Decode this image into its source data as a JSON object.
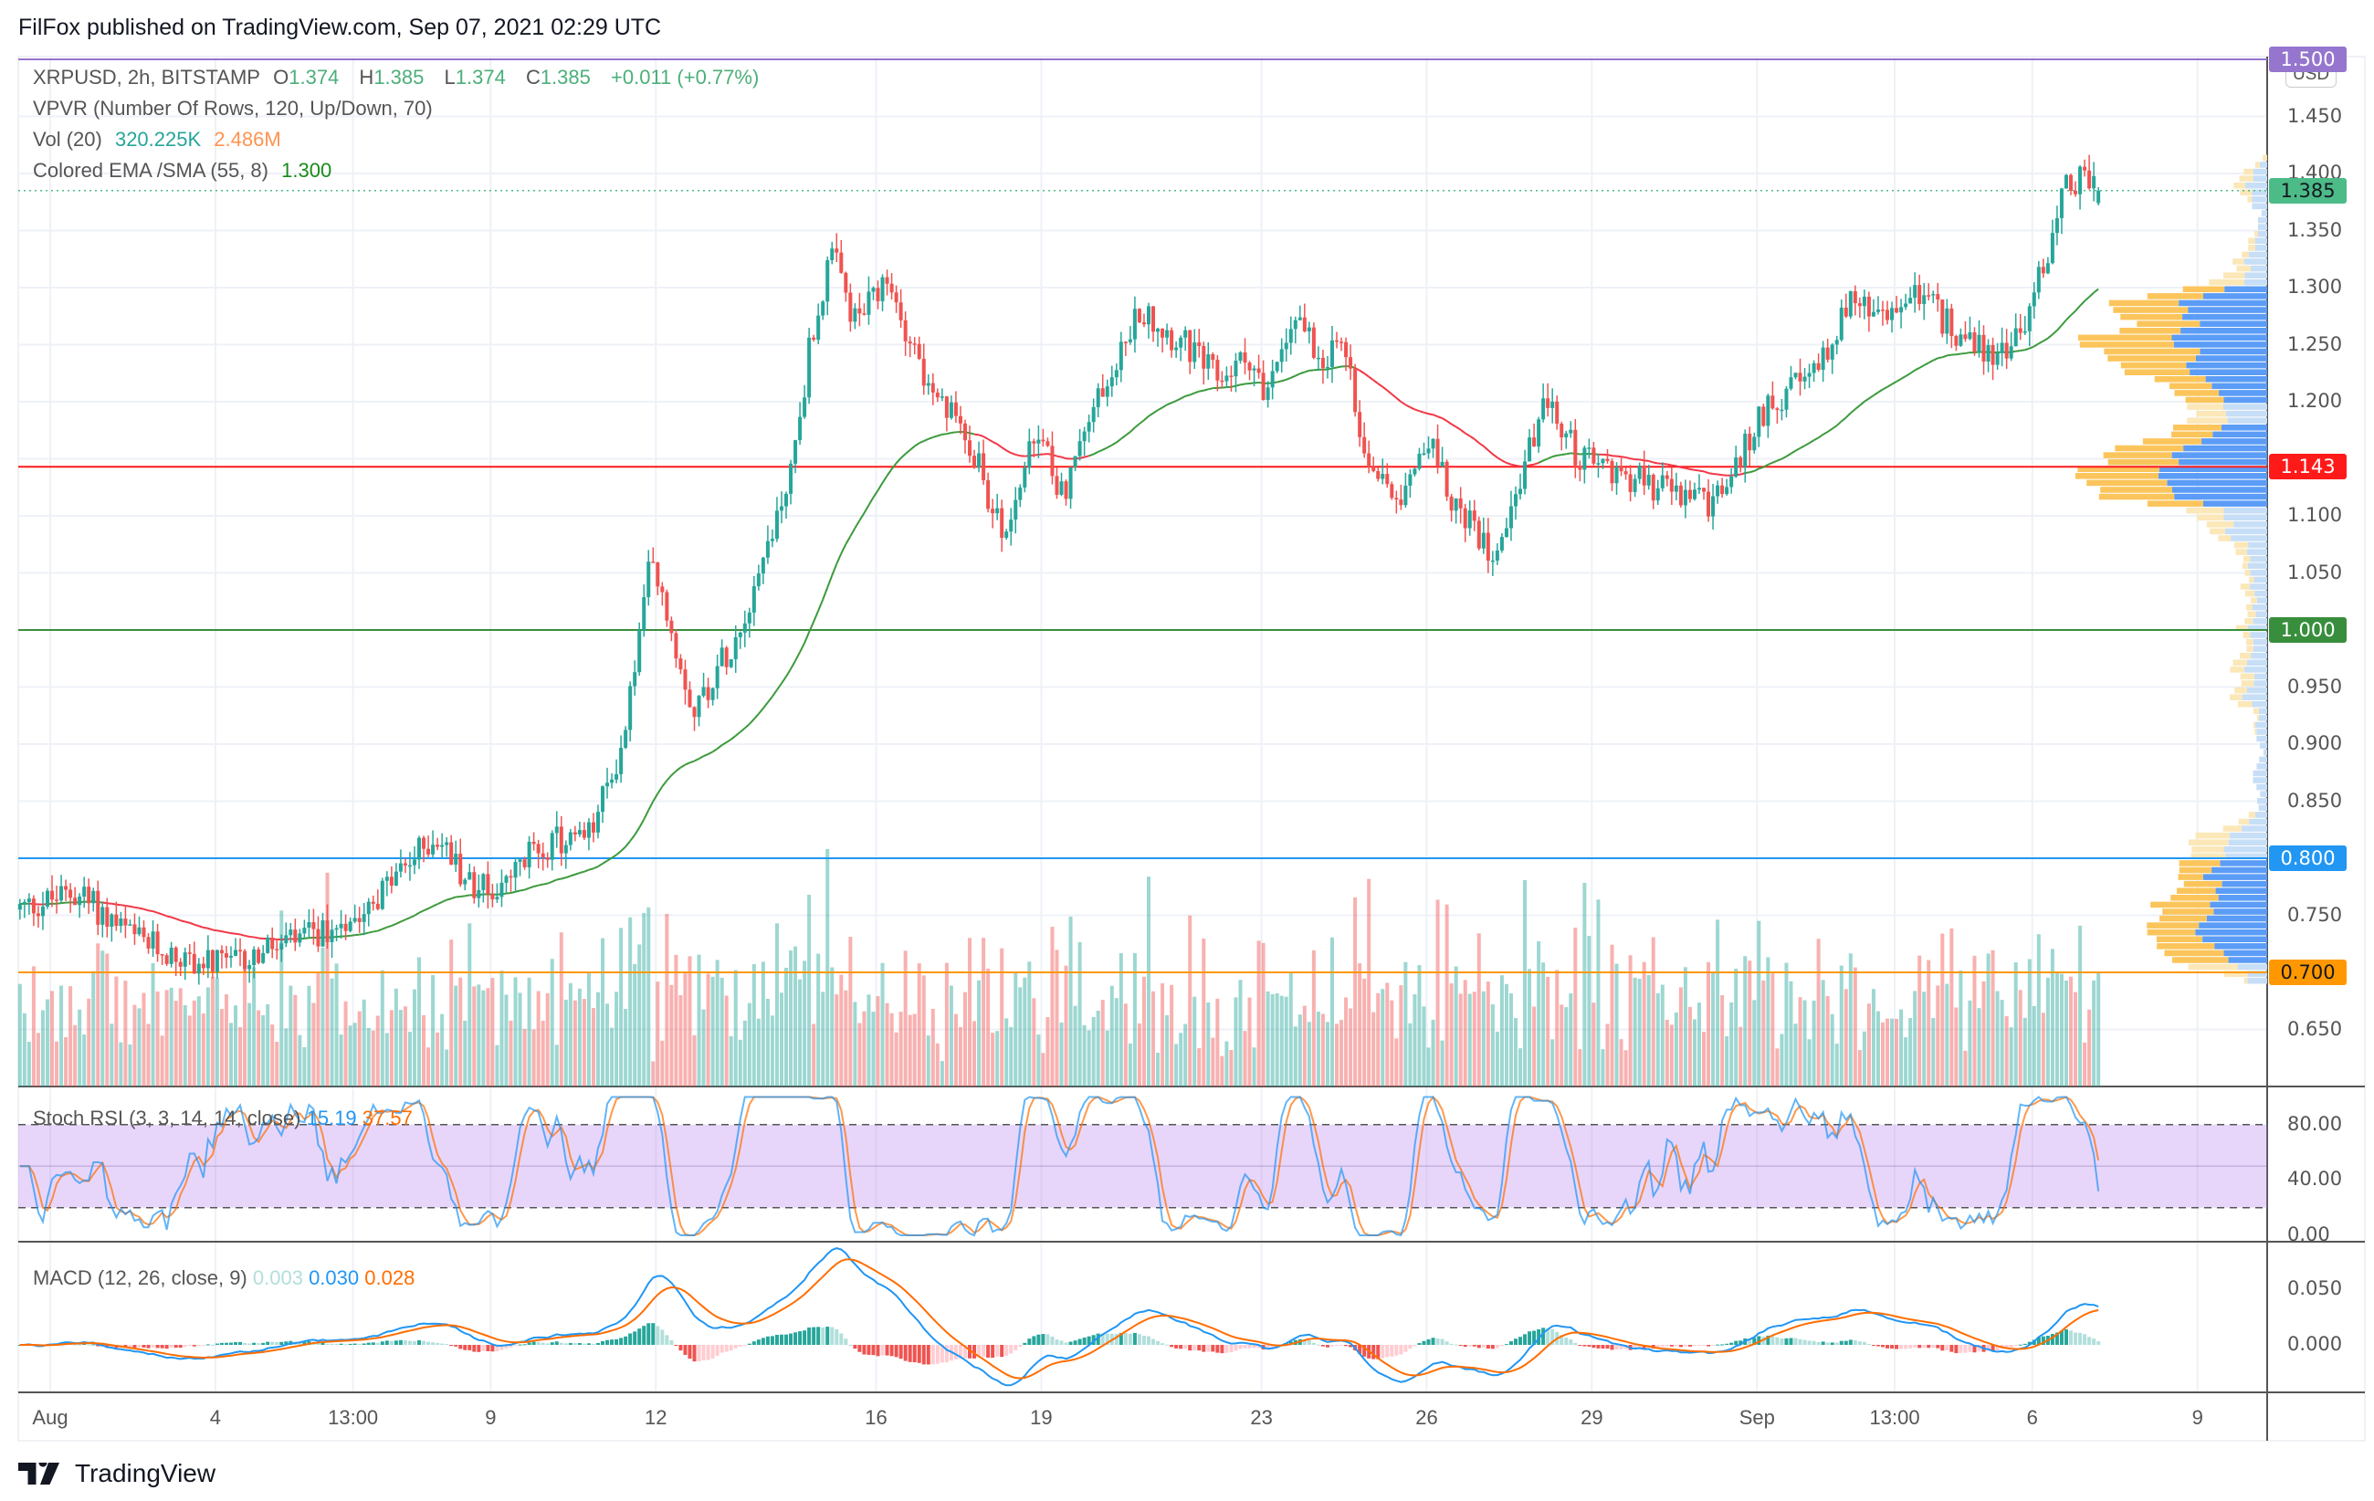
{
  "title": "FilFox published on TradingView.com, Sep 07, 2021 02:29 UTC",
  "legend": {
    "symbol": "XRPUSD, 2h, BITSTAMP",
    "o_label": "O",
    "o": "1.374",
    "h_label": "H",
    "h": "1.385",
    "l_label": "L",
    "l": "1.374",
    "c_label": "C",
    "c": "1.385",
    "change": "+0.011 (+0.77%)",
    "vpvr": "VPVR (Number Of Rows, 120, Up/Down, 70)",
    "vol_label": "Vol (20)",
    "vol": "320.225K",
    "vol_ma": "2.486M",
    "ema_label": "Colored EMA /SMA (55, 8)",
    "ema": "1.300"
  },
  "stoch": {
    "label": "Stoch RSI (3, 3, 14, 14, close)",
    "k": "15.19",
    "d": "37.57",
    "ticks": [
      "80.00",
      "40.00",
      "0.00"
    ]
  },
  "macd": {
    "label": "MACD (12, 26, close, 9)",
    "hist": "0.003",
    "macd": "0.030",
    "signal": "0.028",
    "ticks": [
      "0.050",
      "0.000"
    ]
  },
  "axis": {
    "currency": "USD",
    "price_ticks": [
      "1.450",
      "1.400",
      "1.350",
      "1.300",
      "1.250",
      "1.200",
      "1.100",
      "1.050",
      "0.950",
      "0.900",
      "0.850",
      "0.750",
      "0.650"
    ]
  },
  "badges": [
    {
      "text": "1.500",
      "value": 1.5,
      "color": "#9575cd",
      "fg": "#fff"
    },
    {
      "text": "1.385",
      "value": 1.385,
      "color": "#4cbb87",
      "fg": "#131722"
    },
    {
      "text": "1.143",
      "value": 1.143,
      "color": "#ff1a1a",
      "fg": "#fff"
    },
    {
      "text": "1.000",
      "value": 1.0,
      "color": "#388e3c",
      "fg": "#fff"
    },
    {
      "text": "0.800",
      "value": 0.8,
      "color": "#2196f3",
      "fg": "#fff"
    },
    {
      "text": "0.700",
      "value": 0.7,
      "color": "#ff9800",
      "fg": "#131722"
    }
  ],
  "time_labels": [
    {
      "t": "Aug",
      "day": 0
    },
    {
      "t": "4",
      "day": 3
    },
    {
      "t": "13:00",
      "day": 5.5
    },
    {
      "t": "9",
      "day": 8
    },
    {
      "t": "12",
      "day": 11
    },
    {
      "t": "16",
      "day": 15
    },
    {
      "t": "19",
      "day": 18
    },
    {
      "t": "23",
      "day": 22
    },
    {
      "t": "26",
      "day": 25
    },
    {
      "t": "29",
      "day": 28
    },
    {
      "t": "Sep",
      "day": 31
    },
    {
      "t": "13:00",
      "day": 33.5
    },
    {
      "t": "6",
      "day": 36
    },
    {
      "t": "9",
      "day": 39
    }
  ],
  "logo": "TradingView",
  "chart_data": {
    "type": "candlestick",
    "symbol": "XRPUSD",
    "interval": "2h",
    "exchange": "BITSTAMP",
    "ylim": [
      0.62,
      1.5
    ],
    "hlines": [
      {
        "value": 1.5,
        "color": "#9575cd"
      },
      {
        "value": 1.143,
        "color": "#ff1a1a"
      },
      {
        "value": 1.0,
        "color": "#388e3c"
      },
      {
        "value": 0.8,
        "color": "#2196f3"
      },
      {
        "value": 0.7,
        "color": "#ff9800"
      }
    ],
    "last_price": 1.385,
    "close_path_day_price": [
      [
        -0.6,
        0.755
      ],
      [
        0.5,
        0.77
      ],
      [
        1.5,
        0.73
      ],
      [
        2.5,
        0.71
      ],
      [
        3.2,
        0.705
      ],
      [
        4,
        0.72
      ],
      [
        5,
        0.735
      ],
      [
        6,
        0.77
      ],
      [
        7,
        0.82
      ],
      [
        7.6,
        0.78
      ],
      [
        8.2,
        0.77
      ],
      [
        8.8,
        0.81
      ],
      [
        9.8,
        0.82
      ],
      [
        10.4,
        0.9
      ],
      [
        10.9,
        1.06
      ],
      [
        11.7,
        0.93
      ],
      [
        12.5,
        1.0
      ],
      [
        13.2,
        1.1
      ],
      [
        13.5,
        1.15
      ],
      [
        13.8,
        1.25
      ],
      [
        14.2,
        1.33
      ],
      [
        14.6,
        1.27
      ],
      [
        15.2,
        1.3
      ],
      [
        15.7,
        1.25
      ],
      [
        16,
        1.2
      ],
      [
        16.6,
        1.18
      ],
      [
        17.3,
        1.08
      ],
      [
        17.9,
        1.17
      ],
      [
        18.4,
        1.12
      ],
      [
        19,
        1.2
      ],
      [
        19.8,
        1.28
      ],
      [
        20.6,
        1.25
      ],
      [
        21.2,
        1.22
      ],
      [
        21.8,
        1.24
      ],
      [
        22.1,
        1.2
      ],
      [
        22.6,
        1.28
      ],
      [
        23.1,
        1.24
      ],
      [
        23.5,
        1.25
      ],
      [
        23.9,
        1.15
      ],
      [
        24.5,
        1.12
      ],
      [
        25,
        1.17
      ],
      [
        25.6,
        1.1
      ],
      [
        26.2,
        1.07
      ],
      [
        26.7,
        1.13
      ],
      [
        27.1,
        1.2
      ],
      [
        27.8,
        1.15
      ],
      [
        28.4,
        1.14
      ],
      [
        29.5,
        1.12
      ],
      [
        30.2,
        1.11
      ],
      [
        30.6,
        1.14
      ],
      [
        31.2,
        1.2
      ],
      [
        32,
        1.22
      ],
      [
        32.7,
        1.29
      ],
      [
        33.3,
        1.27
      ],
      [
        33.9,
        1.3
      ],
      [
        34.4,
        1.27
      ],
      [
        35.3,
        1.24
      ],
      [
        35.8,
        1.26
      ],
      [
        36.2,
        1.32
      ],
      [
        36.6,
        1.39
      ],
      [
        37,
        1.4
      ],
      [
        37.2,
        1.385
      ]
    ]
  }
}
